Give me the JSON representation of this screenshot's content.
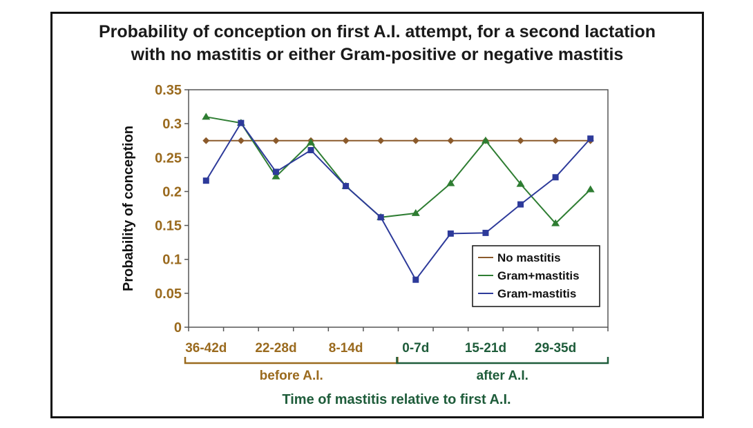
{
  "chart_data": {
    "type": "line",
    "title_lines": [
      "Probability of conception on first A.I. attempt, for a second lactation",
      "with no mastitis or either Gram-positive or negative mastitis"
    ],
    "ylabel": "Probability of conception",
    "xlabel": "Time of mastitis relative to first A.I.",
    "ylim": [
      0,
      0.35
    ],
    "yticks": [
      "0",
      "0.05",
      "0.1",
      "0.15",
      "0.2",
      "0.25",
      "0.3",
      "0.35"
    ],
    "x_tick_labels": [
      {
        "label": "36-42d",
        "group": "before",
        "index": 0
      },
      {
        "label": "22-28d",
        "group": "before",
        "index": 2
      },
      {
        "label": "8-14d",
        "group": "before",
        "index": 4
      },
      {
        "label": "0-7d",
        "group": "after",
        "index": 6
      },
      {
        "label": "15-21d",
        "group": "after",
        "index": 8
      },
      {
        "label": "29-35d",
        "group": "after",
        "index": 10
      }
    ],
    "groups": [
      {
        "label": "before A.I.",
        "from": 0,
        "to": 5,
        "color": "#9a6a1e"
      },
      {
        "label": "after A.I.",
        "from": 6,
        "to": 11,
        "color": "#1e5c3a"
      }
    ],
    "grid": true,
    "legend_position": "bottom-right",
    "colors": {
      "tick_brown": "#9a6a1e",
      "tick_green": "#1e5c3a",
      "xlabel": "#1e5c3a",
      "grid": "#bfbfbf"
    },
    "series": [
      {
        "name": "No mastitis",
        "color": "#8b5a2b",
        "marker": "diamond",
        "values": [
          0.275,
          0.275,
          0.275,
          0.275,
          0.275,
          0.275,
          0.275,
          0.275,
          0.275,
          0.275,
          0.275,
          0.275
        ]
      },
      {
        "name": "Gram+mastitis",
        "color": "#2e7d32",
        "marker": "triangle",
        "values": [
          0.31,
          0.301,
          0.222,
          0.272,
          0.208,
          0.162,
          0.168,
          0.212,
          0.275,
          0.211,
          0.153,
          0.203
        ]
      },
      {
        "name": "Gram-mastitis",
        "color": "#2d3a9a",
        "marker": "square",
        "values": [
          0.216,
          0.301,
          0.229,
          0.261,
          0.208,
          0.162,
          0.07,
          0.138,
          0.139,
          0.181,
          0.221,
          0.278
        ]
      }
    ]
  }
}
